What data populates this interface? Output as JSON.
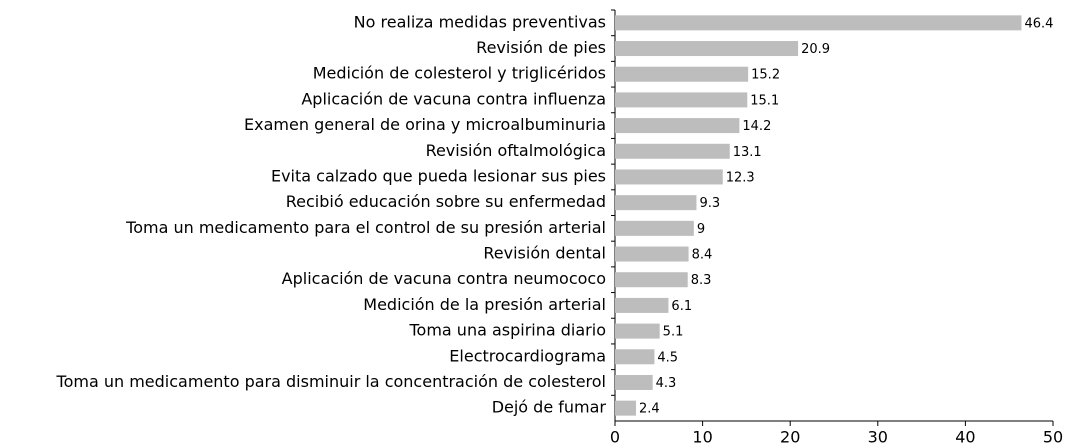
{
  "chart_data": {
    "type": "bar",
    "orientation": "horizontal",
    "categories": [
      "No realiza medidas preventivas",
      "Revisión de pies",
      "Medición de colesterol y triglicéridos",
      "Aplicación de vacuna contra influenza",
      "Examen general de orina y microalbuminuria",
      "Revisión oftalmológica",
      "Evita calzado que pueda lesionar sus pies",
      "Recibió educación sobre su enfermedad",
      "Toma un medicamento para el control de su presión arterial",
      "Revisión dental",
      "Aplicación de vacuna contra neumococo",
      "Medición de la presión arterial",
      "Toma una aspirina diario",
      "Electrocardiograma",
      "Toma un medicamento para disminuir la concentración de colesterol",
      "Dejó de fumar"
    ],
    "values": [
      46.4,
      20.9,
      15.2,
      15.1,
      14.2,
      13.1,
      12.3,
      9.3,
      9,
      8.4,
      8.3,
      6.1,
      5.1,
      4.5,
      4.3,
      2.4
    ],
    "color": "#bdbdbd",
    "xlim": [
      0,
      50
    ],
    "xticks": [
      0,
      10,
      20,
      30,
      40,
      50
    ]
  }
}
